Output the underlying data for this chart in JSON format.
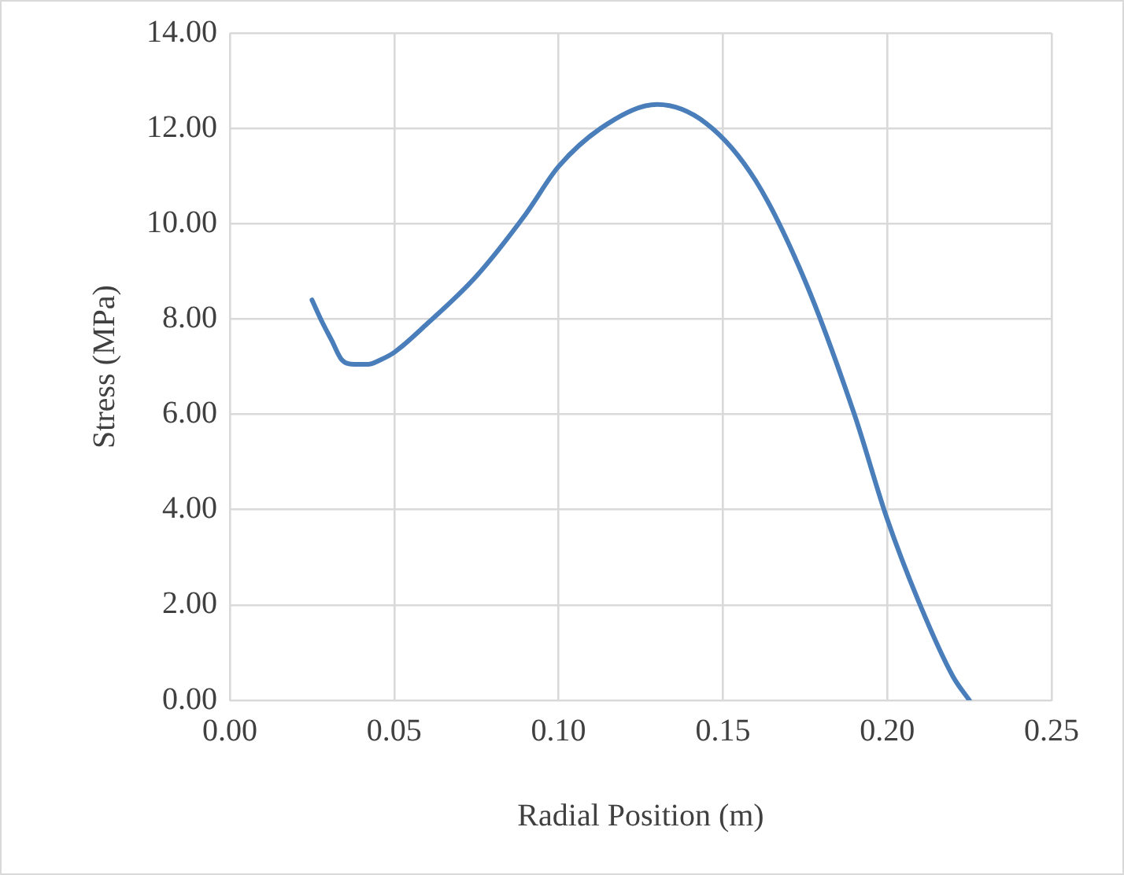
{
  "chart_data": {
    "type": "line",
    "xlabel": "Radial Position (m)",
    "ylabel": "Stress (MPa)",
    "series": [
      {
        "color": "#4a7ebb",
        "x": [
          0.025,
          0.028,
          0.031,
          0.034,
          0.038,
          0.042,
          0.046,
          0.05,
          0.06,
          0.075,
          0.09,
          0.1,
          0.115,
          0.13,
          0.145,
          0.16,
          0.175,
          0.19,
          0.2,
          0.21,
          0.22,
          0.225
        ],
        "values": [
          8.4,
          7.95,
          7.55,
          7.15,
          7.05,
          7.05,
          7.15,
          7.3,
          7.9,
          8.9,
          10.2,
          11.2,
          12.1,
          12.5,
          12.1,
          10.9,
          8.8,
          6.0,
          3.8,
          2.0,
          0.5,
          0.0
        ]
      }
    ],
    "xlim": [
      0,
      0.25
    ],
    "ylim": [
      0,
      14
    ],
    "xticks": [
      {
        "value": 0,
        "label": "0.00"
      },
      {
        "value": 0.05,
        "label": "0.05"
      },
      {
        "value": 0.1,
        "label": "0.10"
      },
      {
        "value": 0.15,
        "label": "0.15"
      },
      {
        "value": 0.2,
        "label": "0.20"
      },
      {
        "value": 0.25,
        "label": "0.25"
      }
    ],
    "yticks": [
      {
        "value": 0,
        "label": "0.00"
      },
      {
        "value": 2,
        "label": "2.00"
      },
      {
        "value": 4,
        "label": "4.00"
      },
      {
        "value": 6,
        "label": "6.00"
      },
      {
        "value": 8,
        "label": "8.00"
      },
      {
        "value": 10,
        "label": "10.00"
      },
      {
        "value": 12,
        "label": "12.00"
      },
      {
        "value": 14,
        "label": "14.00"
      }
    ],
    "grid": true,
    "legend": false,
    "marker": "none",
    "line_style": "solid"
  }
}
